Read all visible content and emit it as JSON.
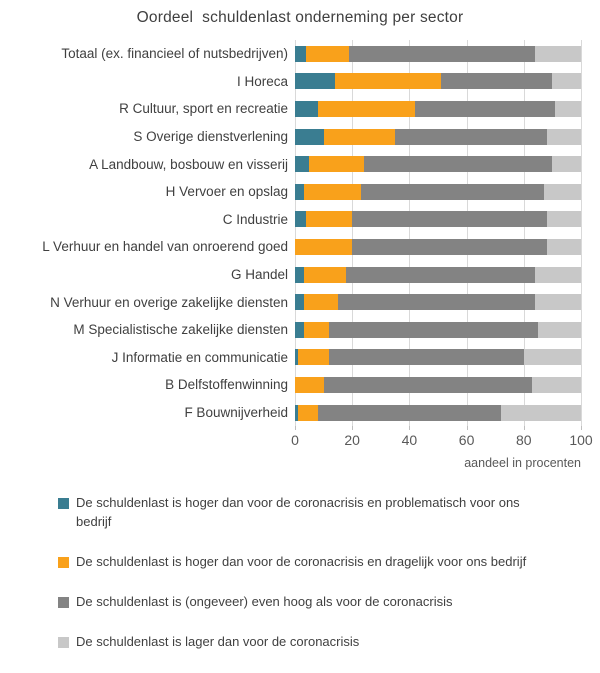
{
  "title": "Oordeel  schuldenlast onderneming per sector",
  "axis": {
    "ticks": [
      0,
      20,
      40,
      60,
      80,
      100
    ],
    "max": 100,
    "label": "aandeel in procenten"
  },
  "colors": {
    "problematisch": "#3a7d91",
    "dragelijk": "#f9a11b",
    "even_hoog": "#838383",
    "lager": "#c8c8c8",
    "gridline": "#d9d9d9",
    "tick": "#bfbfbf",
    "text": "#404040",
    "axis_text": "#595959"
  },
  "chart_data": {
    "type": "bar",
    "orientation": "horizontal",
    "stacked": true,
    "title": "Oordeel  schuldenlast onderneming per sector",
    "xlabel": "aandeel in procenten",
    "xlim": [
      0,
      100
    ],
    "x_ticks": [
      0,
      20,
      40,
      60,
      80,
      100
    ],
    "grid": true,
    "legend_position": "bottom",
    "categories": [
      "Totaal (ex. financieel of nutsbedrijven)",
      "I Horeca",
      "R Cultuur, sport en recreatie",
      "S Overige dienstverlening",
      "A Landbouw, bosbouw en visserij",
      "H Vervoer en opslag",
      "C Industrie",
      "L Verhuur en handel van onroerend goed",
      "G Handel",
      "N Verhuur en overige zakelijke diensten",
      "M Specialistische zakelijke diensten",
      "J Informatie en communicatie",
      "B Delfstoffenwinning",
      "F Bouwnijverheid"
    ],
    "series": [
      {
        "name": "De schuldenlast is hoger dan voor de coronacrisis en problematisch voor ons bedrijf",
        "color_key": "problematisch",
        "values": [
          4,
          14,
          8,
          10,
          5,
          3,
          4,
          0,
          3,
          3,
          3,
          1,
          0,
          1
        ]
      },
      {
        "name": "De schuldenlast is hoger dan voor de coronacrisis en dragelijk voor ons bedrijf",
        "color_key": "dragelijk",
        "values": [
          15,
          37,
          34,
          25,
          19,
          20,
          16,
          20,
          15,
          12,
          9,
          11,
          10,
          7
        ]
      },
      {
        "name": "De schuldenlast is (ongeveer) even hoog als voor de coronacrisis",
        "color_key": "even_hoog",
        "values": [
          65,
          39,
          49,
          53,
          66,
          64,
          68,
          68,
          66,
          69,
          73,
          68,
          73,
          64
        ]
      },
      {
        "name": "De schuldenlast is lager dan voor de coronacrisis",
        "color_key": "lager",
        "values": [
          16,
          10,
          9,
          12,
          10,
          13,
          12,
          12,
          16,
          16,
          15,
          20,
          17,
          28
        ]
      }
    ]
  },
  "legend": {
    "items": [
      {
        "color_key": "problematisch",
        "label": "De schuldenlast is hoger dan voor de coronacrisis en problematisch voor ons\nbedrijf"
      },
      {
        "color_key": "dragelijk",
        "label": "De schuldenlast is hoger dan voor de coronacrisis en dragelijk voor ons bedrijf"
      },
      {
        "color_key": "even_hoog",
        "label": "De schuldenlast is (ongeveer) even hoog als voor de coronacrisis"
      },
      {
        "color_key": "lager",
        "label": "De schuldenlast is lager dan voor de coronacrisis"
      }
    ]
  }
}
